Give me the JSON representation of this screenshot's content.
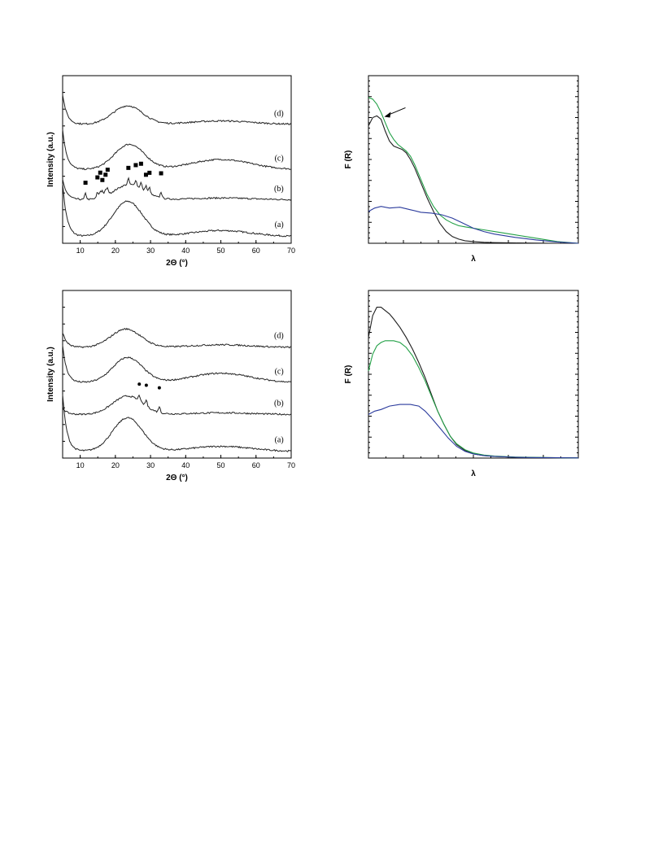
{
  "chart_data": [
    {
      "id": "xrd-top",
      "type": "line",
      "title": "",
      "xlabel": "2Θ (°)",
      "ylabel": "Intensity (a.u.)",
      "xlim": [
        5,
        70
      ],
      "ylim": [
        0,
        5
      ],
      "xticks": [
        10,
        20,
        30,
        40,
        50,
        60,
        70
      ],
      "yticks_labeled": false,
      "grid": false,
      "series": [
        {
          "name": "(a)",
          "color": "#222222",
          "offset": 0.2,
          "amp": 1.05,
          "bumpx": 23.5,
          "bumpw": 6,
          "base": 0.0,
          "wide": 0.18,
          "start": 1.6
        },
        {
          "name": "(b)",
          "color": "#222222",
          "offset": 1.3,
          "amp": 0.45,
          "bumpx": 24,
          "bumpw": 6,
          "base": 0.0,
          "wide": 0.05,
          "start": 0.6
        },
        {
          "name": "(c)",
          "color": "#222222",
          "offset": 2.2,
          "amp": 0.75,
          "bumpx": 24,
          "bumpw": 6,
          "base": 0.0,
          "wide": 0.3,
          "start": 1.2
        },
        {
          "name": "(d)",
          "color": "#222222",
          "offset": 3.55,
          "amp": 0.55,
          "bumpx": 23.5,
          "bumpw": 6,
          "base": 0.0,
          "wide": 0.1,
          "start": 0.9
        }
      ],
      "markers": {
        "symbol": "square",
        "series": "(b)",
        "x": [
          11.5,
          14.9,
          15.7,
          16.3,
          17.2,
          17.8,
          23.7,
          25.8,
          27.3,
          28.7,
          29.7,
          33.0
        ]
      }
    },
    {
      "id": "drs-top",
      "type": "line",
      "title": "",
      "xlabel": "λ",
      "ylabel": "F (R)",
      "xlim": [
        0,
        1
      ],
      "ylim": [
        0,
        1
      ],
      "xticks_labeled": false,
      "yticks_labeled": false,
      "grid": false,
      "series": [
        {
          "name": "",
          "color": "#1e1e1e",
          "x": [
            0,
            0.02,
            0.04,
            0.06,
            0.08,
            0.1,
            0.12,
            0.14,
            0.16,
            0.18,
            0.2,
            0.22,
            0.25,
            0.28,
            0.31,
            0.34,
            0.37,
            0.4,
            0.43,
            0.46,
            0.5,
            0.55,
            0.6,
            0.7,
            0.8,
            0.9,
            1.0
          ],
          "y": [
            0.7,
            0.75,
            0.76,
            0.74,
            0.67,
            0.61,
            0.58,
            0.57,
            0.56,
            0.54,
            0.5,
            0.45,
            0.36,
            0.27,
            0.19,
            0.12,
            0.07,
            0.04,
            0.025,
            0.015,
            0.01,
            0.006,
            0.004,
            0.002,
            0.001,
            0.0,
            0.0
          ]
        },
        {
          "name": "",
          "color": "#22a046",
          "x": [
            0,
            0.02,
            0.04,
            0.06,
            0.08,
            0.1,
            0.12,
            0.14,
            0.16,
            0.18,
            0.2,
            0.22,
            0.25,
            0.28,
            0.31,
            0.34,
            0.37,
            0.4,
            0.43,
            0.46,
            0.5,
            0.55,
            0.6,
            0.7,
            0.8,
            0.9,
            1.0
          ],
          "y": [
            0.87,
            0.86,
            0.83,
            0.78,
            0.72,
            0.66,
            0.62,
            0.59,
            0.57,
            0.55,
            0.52,
            0.47,
            0.38,
            0.29,
            0.22,
            0.17,
            0.14,
            0.12,
            0.105,
            0.098,
            0.09,
            0.08,
            0.07,
            0.05,
            0.03,
            0.01,
            0.0
          ]
        },
        {
          "name": "",
          "color": "#2a3a9c",
          "x": [
            0,
            0.03,
            0.06,
            0.1,
            0.15,
            0.2,
            0.25,
            0.3,
            0.35,
            0.4,
            0.45,
            0.5,
            0.55,
            0.6,
            0.7,
            0.8,
            0.9,
            1.0
          ],
          "y": [
            0.19,
            0.21,
            0.22,
            0.21,
            0.215,
            0.2,
            0.185,
            0.18,
            0.17,
            0.15,
            0.12,
            0.09,
            0.07,
            0.055,
            0.035,
            0.02,
            0.008,
            0.0
          ]
        }
      ],
      "annotation": {
        "type": "arrow",
        "x": 0.06,
        "y": 0.76
      }
    },
    {
      "id": "xrd-bottom",
      "type": "line",
      "title": "",
      "xlabel": "2Θ (°)",
      "ylabel": "Intensity (a.u.)",
      "xlim": [
        5,
        70
      ],
      "ylim": [
        0,
        5
      ],
      "xticks": [
        10,
        20,
        30,
        40,
        50,
        60,
        70
      ],
      "yticks_labeled": false,
      "grid": false,
      "series": [
        {
          "name": "(a)",
          "color": "#222222",
          "offset": 0.2,
          "amp": 1.0,
          "bumpx": 23.5,
          "bumpw": 6,
          "base": 0.0,
          "wide": 0.15,
          "start": 1.7
        },
        {
          "name": "(b)",
          "color": "#222222",
          "offset": 1.3,
          "amp": 0.55,
          "bumpx": 23.5,
          "bumpw": 6,
          "base": 0.0,
          "wide": 0.05,
          "start": 0.2
        },
        {
          "name": "(c)",
          "color": "#222222",
          "offset": 2.25,
          "amp": 0.75,
          "bumpx": 23.5,
          "bumpw": 6,
          "base": 0.0,
          "wide": 0.28,
          "start": 1.1
        },
        {
          "name": "(d)",
          "color": "#222222",
          "offset": 3.3,
          "amp": 0.55,
          "bumpx": 23,
          "bumpw": 6,
          "base": 0.0,
          "wide": 0.08,
          "start": 0.45
        }
      ],
      "markers": {
        "symbol": "circle",
        "series": "(b)",
        "x": [
          26.8,
          28.8,
          32.5
        ]
      }
    },
    {
      "id": "drs-bottom",
      "type": "line",
      "title": "",
      "xlabel": "λ",
      "ylabel": "F (R)",
      "xlim": [
        0,
        1
      ],
      "ylim": [
        0,
        1
      ],
      "xticks_labeled": false,
      "yticks_labeled": false,
      "grid": false,
      "series": [
        {
          "name": "",
          "color": "#1e1e1e",
          "x": [
            0,
            0.02,
            0.04,
            0.06,
            0.08,
            0.1,
            0.12,
            0.15,
            0.18,
            0.21,
            0.24,
            0.27,
            0.3,
            0.33,
            0.36,
            0.39,
            0.42,
            0.46,
            0.5,
            0.55,
            0.6,
            0.7,
            0.8,
            0.9,
            1.0
          ],
          "y": [
            0.72,
            0.85,
            0.9,
            0.9,
            0.88,
            0.86,
            0.83,
            0.78,
            0.72,
            0.65,
            0.57,
            0.48,
            0.38,
            0.28,
            0.2,
            0.13,
            0.08,
            0.045,
            0.025,
            0.015,
            0.01,
            0.005,
            0.003,
            0.002,
            0.001
          ]
        },
        {
          "name": "",
          "color": "#22a046",
          "x": [
            0,
            0.02,
            0.04,
            0.06,
            0.08,
            0.1,
            0.12,
            0.15,
            0.18,
            0.21,
            0.24,
            0.27,
            0.3,
            0.33,
            0.36,
            0.39,
            0.42,
            0.46,
            0.5,
            0.55,
            0.6,
            0.7,
            0.8,
            0.9,
            1.0
          ],
          "y": [
            0.52,
            0.62,
            0.67,
            0.69,
            0.7,
            0.7,
            0.7,
            0.69,
            0.66,
            0.61,
            0.54,
            0.46,
            0.37,
            0.28,
            0.2,
            0.13,
            0.085,
            0.05,
            0.03,
            0.018,
            0.012,
            0.006,
            0.004,
            0.002,
            0.001
          ]
        },
        {
          "name": "",
          "color": "#2a3a9c",
          "x": [
            0,
            0.03,
            0.06,
            0.1,
            0.15,
            0.2,
            0.24,
            0.27,
            0.3,
            0.34,
            0.38,
            0.42,
            0.46,
            0.5,
            0.55,
            0.6,
            0.7,
            0.8,
            0.9,
            1.0
          ],
          "y": [
            0.26,
            0.28,
            0.29,
            0.31,
            0.32,
            0.32,
            0.31,
            0.28,
            0.24,
            0.18,
            0.12,
            0.07,
            0.04,
            0.025,
            0.015,
            0.01,
            0.005,
            0.003,
            0.002,
            0.001
          ]
        }
      ]
    }
  ]
}
